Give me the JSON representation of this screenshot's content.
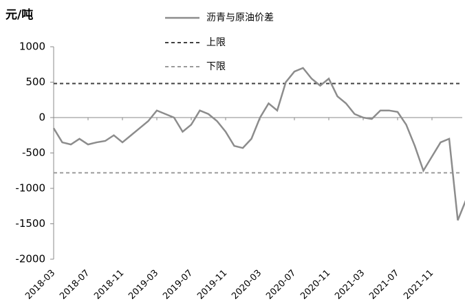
{
  "chart_data": {
    "type": "line",
    "y_unit": "元/吨",
    "x": [
      "2018-03",
      "2018-04",
      "2018-05",
      "2018-06",
      "2018-07",
      "2018-08",
      "2018-09",
      "2018-10",
      "2018-11",
      "2018-12",
      "2019-01",
      "2019-02",
      "2019-03",
      "2019-04",
      "2019-05",
      "2019-06",
      "2019-07",
      "2019-08",
      "2019-09",
      "2019-10",
      "2019-11",
      "2019-12",
      "2020-01",
      "2020-02",
      "2020-03",
      "2020-04",
      "2020-05",
      "2020-06",
      "2020-07",
      "2020-08",
      "2020-09",
      "2020-10",
      "2020-11",
      "2020-12",
      "2021-01",
      "2021-02",
      "2021-03",
      "2021-04",
      "2021-05",
      "2021-06",
      "2021-07",
      "2021-08",
      "2021-09",
      "2021-10",
      "2021-11",
      "2021-12",
      "2022-01",
      "2022-02",
      "2022-03"
    ],
    "xticks": [
      "2018-03",
      "2018-07",
      "2018-11",
      "2019-03",
      "2019-07",
      "2019-11",
      "2020-03",
      "2020-07",
      "2020-11",
      "2021-03",
      "2021-07",
      "2021-11"
    ],
    "series": [
      {
        "name": "沥青与原油价差",
        "color": "#8c8c8c",
        "values": [
          -150,
          -350,
          -380,
          -300,
          -380,
          -350,
          -330,
          -250,
          -350,
          -250,
          -150,
          -50,
          100,
          50,
          0,
          -200,
          -100,
          100,
          50,
          -50,
          -200,
          -400,
          -430,
          -300,
          0,
          200,
          100,
          500,
          650,
          700,
          550,
          450,
          550,
          300,
          200,
          50,
          0,
          -20,
          100,
          100,
          80,
          -100,
          -400,
          -750,
          -550,
          -350,
          -300,
          -1450,
          -1150
        ]
      }
    ],
    "hlines": [
      {
        "name": "上限",
        "value": 480,
        "color": "#404040"
      },
      {
        "name": "下限",
        "value": -780,
        "color": "#9a9a9a"
      }
    ],
    "ylim": [
      -2000,
      1000
    ],
    "yticks": [
      -2000,
      -1500,
      -1000,
      -500,
      0,
      500,
      1000
    ]
  }
}
